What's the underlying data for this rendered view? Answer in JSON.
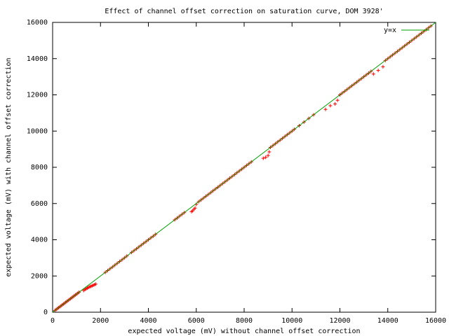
{
  "chart_data": {
    "type": "scatter",
    "title": "Effect of channel offset correction on saturation curve, DOM 3928'",
    "xlabel": "expected voltage (mV) without channel offset correction",
    "ylabel": "expected voltage (mV) with channel offset correction",
    "xlim": [
      0,
      16000
    ],
    "ylim": [
      0,
      16000
    ],
    "xticks": [
      0,
      2000,
      4000,
      6000,
      8000,
      10000,
      12000,
      14000,
      16000
    ],
    "yticks": [
      0,
      2000,
      4000,
      6000,
      8000,
      10000,
      12000,
      14000,
      16000
    ],
    "legend": "top-right",
    "series": [
      {
        "type": "scatter",
        "color": "#ff0000",
        "x": [
          100,
          150,
          200,
          250,
          300,
          350,
          400,
          450,
          500,
          550,
          600,
          650,
          700,
          750,
          800,
          850,
          900,
          950,
          1000,
          1050,
          1100,
          1300,
          1350,
          1400,
          1450,
          1500,
          1550,
          1600,
          1650,
          1700,
          1750,
          1800,
          2200,
          2300,
          2400,
          2500,
          2600,
          2700,
          2800,
          2900,
          3000,
          3100,
          3300,
          3400,
          3500,
          3600,
          3700,
          3800,
          3900,
          4000,
          4100,
          4200,
          4300,
          5100,
          5200,
          5300,
          5400,
          5500,
          5800,
          5850,
          5900,
          5950,
          6000,
          6100,
          6200,
          6300,
          6400,
          6500,
          6600,
          6700,
          6800,
          6900,
          7000,
          7100,
          7200,
          7300,
          7400,
          7500,
          7600,
          7700,
          7800,
          7900,
          8000,
          8100,
          8200,
          8300,
          8800,
          8900,
          9000,
          9050,
          9100,
          9200,
          9300,
          9400,
          9500,
          9600,
          9700,
          9800,
          9900,
          10000,
          10100,
          10300,
          10500,
          10700,
          10900,
          11400,
          11600,
          11800,
          11900,
          12000,
          12100,
          12200,
          12300,
          12400,
          12500,
          12600,
          12700,
          12800,
          12900,
          13000,
          13100,
          13200,
          13300,
          13400,
          13600,
          13800,
          13900,
          14000,
          14100,
          14200,
          14300,
          14400,
          14500,
          14600,
          14700,
          14800,
          14900,
          15000,
          15100,
          15200,
          15300,
          15400,
          15500,
          15600,
          15700,
          15800
        ],
        "values": [
          100,
          150,
          200,
          250,
          300,
          350,
          400,
          450,
          500,
          550,
          600,
          650,
          700,
          750,
          800,
          850,
          900,
          950,
          1000,
          1050,
          1100,
          1200,
          1250,
          1290,
          1330,
          1370,
          1400,
          1430,
          1460,
          1490,
          1520,
          1550,
          2200,
          2300,
          2400,
          2500,
          2600,
          2700,
          2800,
          2900,
          3000,
          3100,
          3300,
          3400,
          3500,
          3600,
          3700,
          3800,
          3900,
          4000,
          4100,
          4200,
          4300,
          5100,
          5200,
          5300,
          5400,
          5500,
          5550,
          5600,
          5680,
          5750,
          5950,
          6100,
          6200,
          6300,
          6400,
          6500,
          6600,
          6700,
          6800,
          6900,
          7000,
          7100,
          7200,
          7300,
          7400,
          7500,
          7600,
          7700,
          7800,
          7900,
          8000,
          8100,
          8200,
          8300,
          8500,
          8550,
          8650,
          8850,
          9100,
          9200,
          9300,
          9400,
          9500,
          9600,
          9700,
          9800,
          9900,
          10000,
          10100,
          10300,
          10500,
          10700,
          10900,
          11200,
          11400,
          11500,
          11700,
          12000,
          12100,
          12200,
          12300,
          12400,
          12500,
          12600,
          12700,
          12800,
          12900,
          13000,
          13100,
          13200,
          13300,
          13150,
          13350,
          13550,
          13900,
          14000,
          14100,
          14200,
          14300,
          14400,
          14500,
          14600,
          14700,
          14800,
          14900,
          15000,
          15100,
          15200,
          15300,
          15400,
          15500,
          15600,
          15700,
          15800
        ]
      },
      {
        "type": "line",
        "name": "y=x",
        "color": "#00a000",
        "x": [
          0,
          16000
        ],
        "values": [
          0,
          16000
        ]
      }
    ]
  }
}
